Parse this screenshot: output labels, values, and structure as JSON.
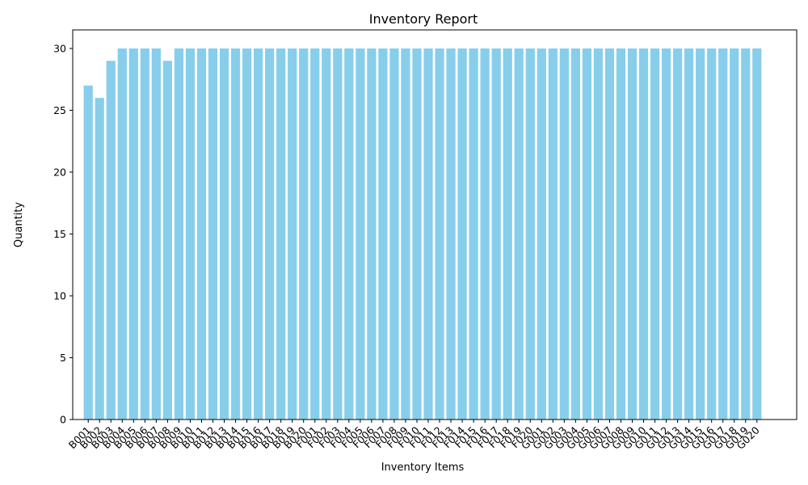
{
  "chart_data": {
    "type": "bar",
    "title": "Inventory Report",
    "xlabel": "Inventory Items",
    "ylabel": "Quantity",
    "ylim": [
      0,
      31.5
    ],
    "yticks": [
      0,
      5,
      10,
      15,
      20,
      25,
      30
    ],
    "bar_color": "#87ceeb",
    "grid": false,
    "categories": [
      "B001",
      "B002",
      "B003",
      "B004",
      "B005",
      "B006",
      "B007",
      "B008",
      "B009",
      "B010",
      "B011",
      "B012",
      "B013",
      "B014",
      "B015",
      "B016",
      "B017",
      "B018",
      "B019",
      "B020",
      "F001",
      "F002",
      "F003",
      "F004",
      "F005",
      "F006",
      "F007",
      "F008",
      "F009",
      "F010",
      "F011",
      "F012",
      "F013",
      "F014",
      "F015",
      "F016",
      "F017",
      "F018",
      "F019",
      "F020",
      "G001",
      "G002",
      "G003",
      "G004",
      "G005",
      "G006",
      "G007",
      "G008",
      "G009",
      "G010",
      "G011",
      "G012",
      "G013",
      "G014",
      "G015",
      "G016",
      "G017",
      "G018",
      "G019",
      "G020"
    ],
    "values": [
      27,
      26,
      29,
      30,
      30,
      30,
      30,
      29,
      30,
      30,
      30,
      30,
      30,
      30,
      30,
      30,
      30,
      30,
      30,
      30,
      30,
      30,
      30,
      30,
      30,
      30,
      30,
      30,
      30,
      30,
      30,
      30,
      30,
      30,
      30,
      30,
      30,
      30,
      30,
      30,
      30,
      30,
      30,
      30,
      30,
      30,
      30,
      30,
      30,
      30,
      30,
      30,
      30,
      30,
      30,
      30,
      30,
      30,
      30,
      30
    ]
  }
}
